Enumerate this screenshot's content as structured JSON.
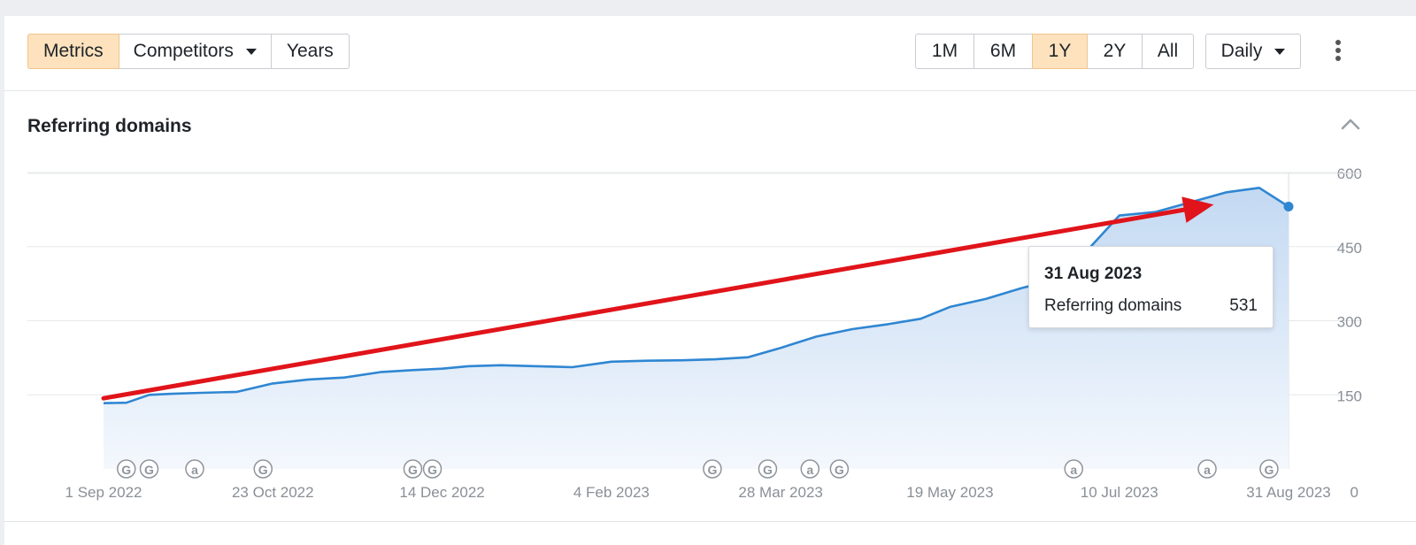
{
  "toolbar": {
    "left_tabs": [
      {
        "label": "Metrics",
        "active": true,
        "dropdown": false
      },
      {
        "label": "Competitors",
        "active": false,
        "dropdown": true
      },
      {
        "label": "Years",
        "active": false,
        "dropdown": false
      }
    ],
    "ranges": [
      {
        "label": "1M",
        "active": false
      },
      {
        "label": "6M",
        "active": false
      },
      {
        "label": "1Y",
        "active": true
      },
      {
        "label": "2Y",
        "active": false
      },
      {
        "label": "All",
        "active": false
      }
    ],
    "interval": {
      "label": "Daily"
    },
    "more_icon": "kebab-vertical-icon"
  },
  "section": {
    "title": "Referring domains",
    "collapse_icon": "chevron-up-icon"
  },
  "tooltip": {
    "date": "31 Aug 2023",
    "label": "Referring domains",
    "value": "531"
  },
  "colors": {
    "line": "#2f86d2",
    "area_top": "#c3d9f2",
    "area_bottom": "#f4f8fd",
    "grid": "#e6e8eb",
    "arrow": "#e0141a",
    "active_button": "#fde2bd"
  },
  "chart_data": {
    "type": "area",
    "xlabel": "",
    "ylabel": "",
    "x_ticks": [
      "1 Sep 2022",
      "23 Oct 2022",
      "14 Dec 2022",
      "4 Feb 2023",
      "28 Mar 2023",
      "19 May 2023",
      "10 Jul 2023",
      "31 Aug 2023"
    ],
    "y_ticks": [
      0,
      150,
      300,
      450,
      600
    ],
    "ylim": [
      0,
      600
    ],
    "axis_position": "right",
    "grid": true,
    "series": [
      {
        "values_by_date": [
          [
            "2022-09-01",
            133
          ],
          [
            "2022-09-08",
            134
          ],
          [
            "2022-09-15",
            150
          ],
          [
            "2022-09-22",
            152
          ],
          [
            "2022-10-01",
            154
          ],
          [
            "2022-10-12",
            156
          ],
          [
            "2022-10-23",
            173
          ],
          [
            "2022-11-03",
            181
          ],
          [
            "2022-11-14",
            185
          ],
          [
            "2022-11-25",
            196
          ],
          [
            "2022-12-05",
            200
          ],
          [
            "2022-12-14",
            203
          ],
          [
            "2022-12-22",
            208
          ],
          [
            "2023-01-01",
            210
          ],
          [
            "2023-01-12",
            208
          ],
          [
            "2023-01-23",
            206
          ],
          [
            "2023-02-04",
            217
          ],
          [
            "2023-02-15",
            219
          ],
          [
            "2023-02-26",
            220
          ],
          [
            "2023-03-08",
            222
          ],
          [
            "2023-03-18",
            226
          ],
          [
            "2023-03-28",
            245
          ],
          [
            "2023-04-08",
            268
          ],
          [
            "2023-04-19",
            283
          ],
          [
            "2023-04-30",
            293
          ],
          [
            "2023-05-10",
            304
          ],
          [
            "2023-05-19",
            328
          ],
          [
            "2023-05-30",
            344
          ],
          [
            "2023-06-10",
            366
          ],
          [
            "2023-06-20",
            383
          ],
          [
            "2023-06-30",
            441
          ],
          [
            "2023-07-10",
            513
          ],
          [
            "2023-07-21",
            520
          ],
          [
            "2023-08-01",
            540
          ],
          [
            "2023-08-12",
            560
          ],
          [
            "2023-08-22",
            569
          ],
          [
            "2023-08-31",
            531
          ]
        ]
      }
    ],
    "event_markers": [
      {
        "date": "2022-09-08",
        "label": "G"
      },
      {
        "date": "2022-09-15",
        "label": "G"
      },
      {
        "date": "2022-09-29",
        "label": "a"
      },
      {
        "date": "2022-10-20",
        "label": "G"
      },
      {
        "date": "2022-12-05",
        "label": "G"
      },
      {
        "date": "2022-12-11",
        "label": "G"
      },
      {
        "date": "2023-03-07",
        "label": "G"
      },
      {
        "date": "2023-03-24",
        "label": "G"
      },
      {
        "date": "2023-04-06",
        "label": "a"
      },
      {
        "date": "2023-04-15",
        "label": "G"
      },
      {
        "date": "2023-06-26",
        "label": "a"
      },
      {
        "date": "2023-08-06",
        "label": "a"
      },
      {
        "date": "2023-08-25",
        "label": "G"
      }
    ],
    "annotations": [
      {
        "type": "arrow",
        "from": [
          "2022-09-01",
          143
        ],
        "to": [
          "2023-08-08",
          535
        ]
      }
    ]
  }
}
